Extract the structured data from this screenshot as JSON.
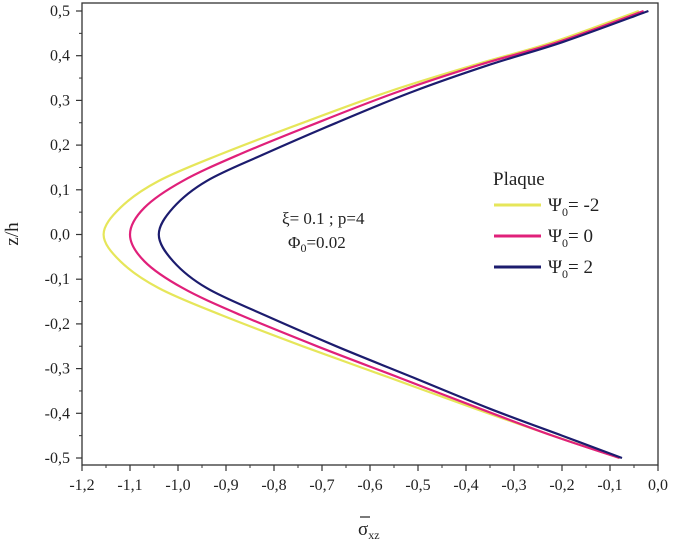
{
  "chart_data": {
    "type": "line",
    "xlabel": "σ",
    "xlabel_sub": "xz",
    "ylabel": "z/h",
    "xlim": [
      -1.2,
      0.0
    ],
    "ylim": [
      -0.5,
      0.5
    ],
    "x_ticks": [
      "-1,2",
      "-1,1",
      "-1,0",
      "-0,9",
      "-0,8",
      "-0,7",
      "-0,6",
      "-0,5",
      "-0,4",
      "-0,3",
      "-0,2",
      "-0,1",
      "0,0"
    ],
    "y_ticks": [
      "-0,5",
      "-0,4",
      "-0,3",
      "-0,2",
      "-0,1",
      "0,0",
      "0,1",
      "0,2",
      "0,3",
      "0,4",
      "0,5"
    ],
    "grid": false,
    "legend": {
      "title": "Plaque",
      "position": "right",
      "entries": [
        {
          "symbol": "Ψ",
          "sub": "0",
          "text": "= -2",
          "color": "#e6e65a"
        },
        {
          "symbol": "Ψ",
          "sub": "0",
          "text": "= 0",
          "color": "#e0207a"
        },
        {
          "symbol": "Ψ",
          "sub": "0",
          "text": "= 2",
          "color": "#1c1c6e"
        }
      ]
    },
    "annotations": {
      "line1": "ξ= 0.1 ; p=4",
      "line2_symbol": "Φ",
      "line2_sub": "0",
      "line2_text": "=0.02"
    },
    "series": [
      {
        "color": "#e6e65a",
        "x": [
          -0.08,
          -0.22,
          -0.38,
          -0.56,
          -0.74,
          -0.91,
          -1.04,
          -1.12,
          -1.155,
          -1.12,
          -1.04,
          -0.91,
          -0.74,
          -0.56,
          -0.38,
          -0.22,
          -0.04
        ],
        "y": [
          -0.5,
          -0.45,
          -0.39,
          -0.32,
          -0.25,
          -0.18,
          -0.12,
          -0.06,
          0.0,
          0.06,
          0.12,
          0.18,
          0.25,
          0.32,
          0.38,
          0.43,
          0.5
        ]
      },
      {
        "color": "#e0207a",
        "x": [
          -0.08,
          -0.22,
          -0.37,
          -0.54,
          -0.71,
          -0.87,
          -0.99,
          -1.07,
          -1.1,
          -1.07,
          -0.99,
          -0.87,
          -0.71,
          -0.54,
          -0.37,
          -0.21,
          -0.03
        ],
        "y": [
          -0.5,
          -0.45,
          -0.39,
          -0.32,
          -0.25,
          -0.18,
          -0.12,
          -0.06,
          0.0,
          0.06,
          0.12,
          0.18,
          0.25,
          0.32,
          0.38,
          0.43,
          0.5
        ]
      },
      {
        "color": "#1c1c6e",
        "x": [
          -0.075,
          -0.2,
          -0.35,
          -0.51,
          -0.67,
          -0.82,
          -0.94,
          -1.01,
          -1.04,
          -1.01,
          -0.94,
          -0.82,
          -0.67,
          -0.51,
          -0.35,
          -0.2,
          -0.02
        ],
        "y": [
          -0.5,
          -0.45,
          -0.39,
          -0.32,
          -0.25,
          -0.18,
          -0.12,
          -0.06,
          0.0,
          0.06,
          0.12,
          0.18,
          0.25,
          0.32,
          0.38,
          0.43,
          0.5
        ]
      }
    ]
  }
}
